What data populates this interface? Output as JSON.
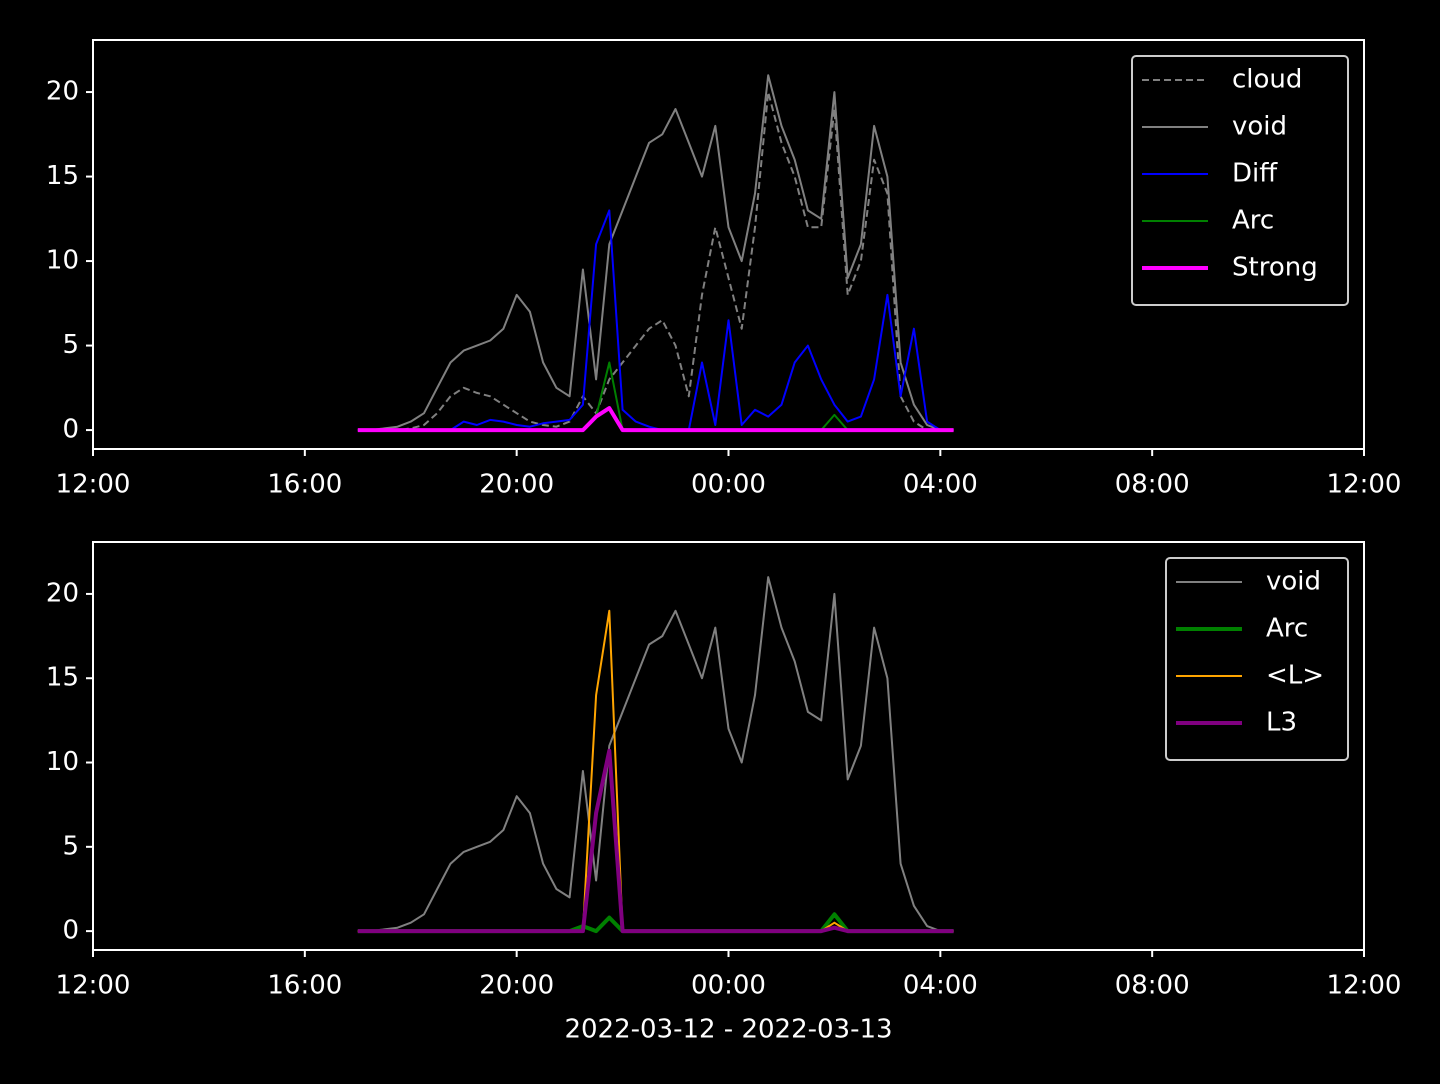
{
  "chart_data": [
    {
      "type": "line",
      "x": [
        "2022-03-12 17:00",
        "2022-03-12 17:15",
        "2022-03-12 17:30",
        "2022-03-12 17:45",
        "2022-03-12 18:00",
        "2022-03-12 18:15",
        "2022-03-12 18:30",
        "2022-03-12 18:45",
        "2022-03-12 19:00",
        "2022-03-12 19:15",
        "2022-03-12 19:30",
        "2022-03-12 19:45",
        "2022-03-12 20:00",
        "2022-03-12 20:15",
        "2022-03-12 20:30",
        "2022-03-12 20:45",
        "2022-03-12 21:00",
        "2022-03-12 21:15",
        "2022-03-12 21:30",
        "2022-03-12 21:45",
        "2022-03-12 22:00",
        "2022-03-12 22:15",
        "2022-03-12 22:30",
        "2022-03-12 22:45",
        "2022-03-12 23:00",
        "2022-03-12 23:15",
        "2022-03-12 23:30",
        "2022-03-12 23:45",
        "2022-03-13 00:00",
        "2022-03-13 00:15",
        "2022-03-13 00:30",
        "2022-03-13 00:45",
        "2022-03-13 01:00",
        "2022-03-13 01:15",
        "2022-03-13 01:30",
        "2022-03-13 01:45",
        "2022-03-13 02:00",
        "2022-03-13 02:15",
        "2022-03-13 02:30",
        "2022-03-13 02:45",
        "2022-03-13 03:00",
        "2022-03-13 03:15",
        "2022-03-13 03:30",
        "2022-03-13 03:45",
        "2022-03-13 04:00",
        "2022-03-13 04:15"
      ],
      "series": [
        {
          "name": "cloud",
          "color": "#808080",
          "linestyle": "dashed",
          "linewidth": 2,
          "values": [
            0,
            0,
            0,
            0,
            0.1,
            0.3,
            1,
            2,
            2.5,
            2.2,
            2,
            1.5,
            1,
            0.5,
            0.3,
            0.2,
            0.5,
            2,
            1,
            3,
            4,
            5,
            6,
            6.5,
            5,
            2,
            8,
            12,
            9,
            6,
            12,
            20,
            17,
            15,
            12,
            12,
            19,
            8,
            10,
            16,
            14,
            2,
            0.5,
            0,
            0,
            0
          ]
        },
        {
          "name": "void",
          "color": "#808080",
          "linestyle": "solid",
          "linewidth": 2,
          "values": [
            0,
            0,
            0.1,
            0.2,
            0.5,
            1,
            2.5,
            4,
            4.7,
            5,
            5.3,
            6,
            8,
            7,
            4,
            2.5,
            2,
            9.5,
            3,
            11,
            13,
            15,
            17,
            17.5,
            19,
            17,
            15,
            18,
            12,
            10,
            14,
            21,
            18,
            16,
            13,
            12.5,
            20,
            9,
            11,
            18,
            15,
            4,
            1.5,
            0.3,
            0,
            0
          ]
        },
        {
          "name": "Diff",
          "color": "#0000ff",
          "linestyle": "solid",
          "linewidth": 2,
          "values": [
            0,
            0,
            0,
            0,
            0,
            0,
            0,
            0,
            0.5,
            0.3,
            0.6,
            0.5,
            0.3,
            0.2,
            0.4,
            0.5,
            0.6,
            1.5,
            11,
            13,
            1.2,
            0.5,
            0.2,
            0,
            0,
            0,
            4,
            0.3,
            6.5,
            0.3,
            1.2,
            0.8,
            1.5,
            4,
            5,
            3,
            1.5,
            0.5,
            0.8,
            3,
            8,
            2,
            6,
            0.5,
            0,
            0
          ]
        },
        {
          "name": "Arc",
          "color": "#008000",
          "linestyle": "solid",
          "linewidth": 2,
          "values": [
            0,
            0,
            0,
            0,
            0,
            0,
            0,
            0,
            0,
            0,
            0,
            0,
            0,
            0,
            0,
            0,
            0,
            0,
            0.8,
            4,
            0,
            0,
            0,
            0,
            0,
            0,
            0,
            0,
            0,
            0,
            0,
            0,
            0,
            0,
            0,
            0,
            0.9,
            0,
            0,
            0,
            0,
            0,
            0,
            0,
            0,
            0
          ]
        },
        {
          "name": "Strong",
          "color": "#ff00ff",
          "linestyle": "solid",
          "linewidth": 4,
          "values": [
            0,
            0,
            0,
            0,
            0,
            0,
            0,
            0,
            0,
            0,
            0,
            0,
            0,
            0,
            0,
            0,
            0,
            0,
            0.8,
            1.3,
            0,
            0,
            0,
            0,
            0,
            0,
            0,
            0,
            0,
            0,
            0,
            0,
            0,
            0,
            0,
            0,
            0,
            0,
            0,
            0,
            0,
            0,
            0,
            0,
            0,
            0
          ]
        }
      ],
      "xlim": [
        "2022-03-12 12:00",
        "2022-03-13 12:00"
      ],
      "xticks": [
        {
          "value": "2022-03-12 12:00",
          "label": "12:00"
        },
        {
          "value": "2022-03-12 16:00",
          "label": "16:00"
        },
        {
          "value": "2022-03-12 20:00",
          "label": "20:00"
        },
        {
          "value": "2022-03-13 00:00",
          "label": "00:00"
        },
        {
          "value": "2022-03-13 04:00",
          "label": "04:00"
        },
        {
          "value": "2022-03-13 08:00",
          "label": "08:00"
        },
        {
          "value": "2022-03-13 12:00",
          "label": "12:00"
        }
      ],
      "ylim": [
        -1.12,
        23.08
      ],
      "yticks": [
        0,
        5,
        10,
        15,
        20
      ],
      "legend": "upper right"
    },
    {
      "type": "line",
      "x": [
        "2022-03-12 17:00",
        "2022-03-12 17:15",
        "2022-03-12 17:30",
        "2022-03-12 17:45",
        "2022-03-12 18:00",
        "2022-03-12 18:15",
        "2022-03-12 18:30",
        "2022-03-12 18:45",
        "2022-03-12 19:00",
        "2022-03-12 19:15",
        "2022-03-12 19:30",
        "2022-03-12 19:45",
        "2022-03-12 20:00",
        "2022-03-12 20:15",
        "2022-03-12 20:30",
        "2022-03-12 20:45",
        "2022-03-12 21:00",
        "2022-03-12 21:15",
        "2022-03-12 21:30",
        "2022-03-12 21:45",
        "2022-03-12 22:00",
        "2022-03-12 22:15",
        "2022-03-12 22:30",
        "2022-03-12 22:45",
        "2022-03-12 23:00",
        "2022-03-12 23:15",
        "2022-03-12 23:30",
        "2022-03-12 23:45",
        "2022-03-13 00:00",
        "2022-03-13 00:15",
        "2022-03-13 00:30",
        "2022-03-13 00:45",
        "2022-03-13 01:00",
        "2022-03-13 01:15",
        "2022-03-13 01:30",
        "2022-03-13 01:45",
        "2022-03-13 02:00",
        "2022-03-13 02:15",
        "2022-03-13 02:30",
        "2022-03-13 02:45",
        "2022-03-13 03:00",
        "2022-03-13 03:15",
        "2022-03-13 03:30",
        "2022-03-13 03:45",
        "2022-03-13 04:00",
        "2022-03-13 04:15"
      ],
      "series": [
        {
          "name": "void",
          "color": "#808080",
          "linestyle": "solid",
          "linewidth": 2,
          "values": [
            0,
            0,
            0.1,
            0.2,
            0.5,
            1,
            2.5,
            4,
            4.7,
            5,
            5.3,
            6,
            8,
            7,
            4,
            2.5,
            2,
            9.5,
            3,
            11,
            13,
            15,
            17,
            17.5,
            19,
            17,
            15,
            18,
            12,
            10,
            14,
            21,
            18,
            16,
            13,
            12.5,
            20,
            9,
            11,
            18,
            15,
            4,
            1.5,
            0.3,
            0,
            0
          ]
        },
        {
          "name": "Arc",
          "color": "#008000",
          "linestyle": "solid",
          "linewidth": 4,
          "values": [
            0,
            0,
            0,
            0,
            0,
            0,
            0,
            0,
            0,
            0,
            0,
            0,
            0,
            0,
            0,
            0,
            0,
            0.3,
            0,
            0.8,
            0,
            0,
            0,
            0,
            0,
            0,
            0,
            0,
            0,
            0,
            0,
            0,
            0,
            0,
            0,
            0,
            1,
            0,
            0,
            0,
            0,
            0,
            0,
            0,
            0,
            0
          ]
        },
        {
          "name": "<L>",
          "color": "#ffa500",
          "linestyle": "solid",
          "linewidth": 2,
          "values": [
            0,
            0,
            0,
            0,
            0,
            0,
            0,
            0,
            0,
            0,
            0,
            0,
            0,
            0,
            0,
            0,
            0,
            0,
            14,
            19,
            0,
            0,
            0,
            0,
            0,
            0,
            0,
            0,
            0,
            0,
            0,
            0,
            0,
            0,
            0,
            0,
            0.5,
            0,
            0,
            0,
            0,
            0,
            0,
            0,
            0,
            0
          ]
        },
        {
          "name": "L3",
          "color": "#800080",
          "linestyle": "solid",
          "linewidth": 4,
          "values": [
            0,
            0,
            0,
            0,
            0,
            0,
            0,
            0,
            0,
            0,
            0,
            0,
            0,
            0,
            0,
            0,
            0,
            0,
            7,
            10.7,
            0,
            0,
            0,
            0,
            0,
            0,
            0,
            0,
            0,
            0,
            0,
            0,
            0,
            0,
            0,
            0,
            0.2,
            0,
            0,
            0,
            0,
            0,
            0,
            0,
            0,
            0
          ]
        }
      ],
      "xlim": [
        "2022-03-12 12:00",
        "2022-03-13 12:00"
      ],
      "xticks": [
        {
          "value": "2022-03-12 12:00",
          "label": "12:00"
        },
        {
          "value": "2022-03-12 16:00",
          "label": "16:00"
        },
        {
          "value": "2022-03-12 20:00",
          "label": "20:00"
        },
        {
          "value": "2022-03-13 00:00",
          "label": "00:00"
        },
        {
          "value": "2022-03-13 04:00",
          "label": "04:00"
        },
        {
          "value": "2022-03-13 08:00",
          "label": "08:00"
        },
        {
          "value": "2022-03-13 12:00",
          "label": "12:00"
        }
      ],
      "ylim": [
        -1.12,
        23.08
      ],
      "yticks": [
        0,
        5,
        10,
        15,
        20
      ],
      "legend": "upper right",
      "xlabel": "2022-03-12 - 2022-03-13"
    }
  ]
}
